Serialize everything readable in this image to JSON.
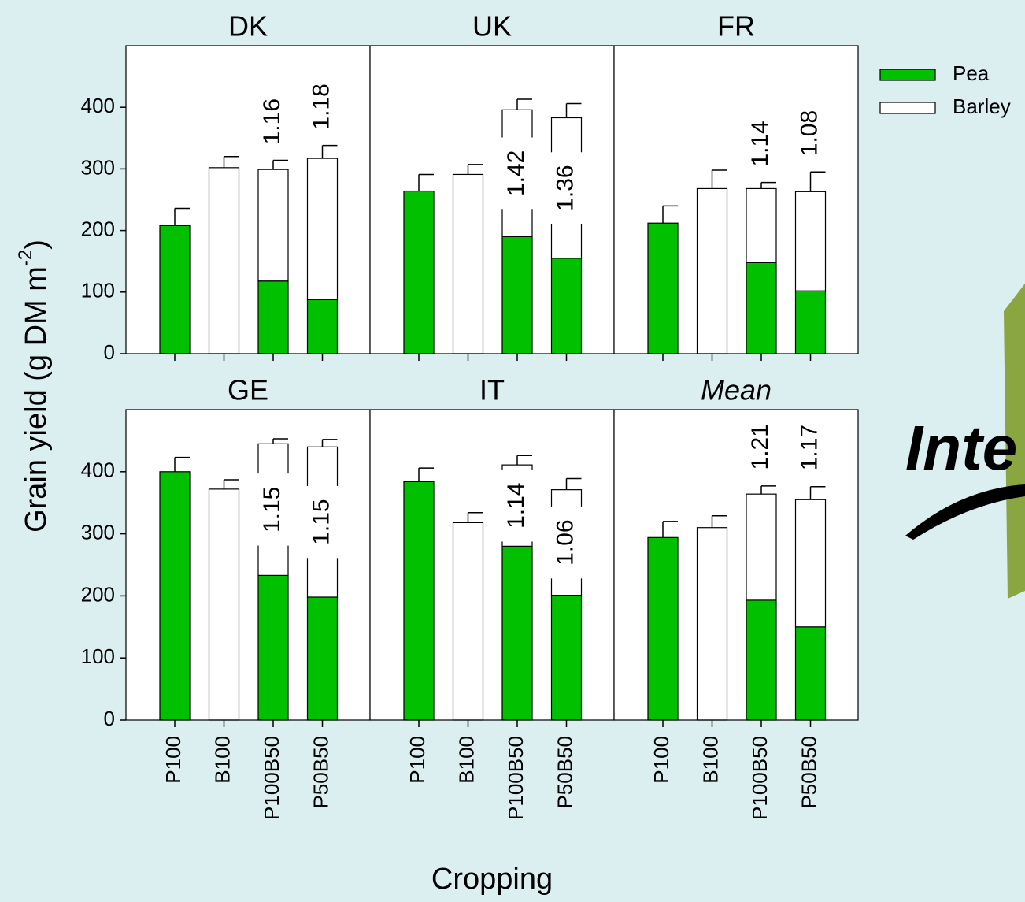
{
  "axis_labels": {
    "y": [
      "Grain yield (g DM m",
      "-2",
      ")"
    ],
    "x": "Cropping"
  },
  "logo_text": "Inte",
  "chart_data": [
    {
      "type": "bar",
      "title": "DK",
      "categories": [
        "P100",
        "B100",
        "P100B50",
        "P50B50"
      ],
      "ylim": [
        0,
        500
      ],
      "yticks": [
        0,
        100,
        200,
        300,
        400
      ],
      "series": [
        {
          "name": "Pea",
          "color": "#00c000",
          "values": [
            208,
            null,
            118,
            88
          ],
          "errors": [
            28,
            null,
            16,
            19
          ]
        },
        {
          "name": "Barley",
          "color": "#ffffff",
          "values": [
            null,
            302,
            181,
            229
          ],
          "errors": [
            null,
            18,
            15,
            21
          ]
        }
      ],
      "annotations": [
        "1.16",
        "1.18"
      ]
    },
    {
      "type": "bar",
      "title": "UK",
      "categories": [
        "P100",
        "B100",
        "P100B50",
        "P50B50"
      ],
      "ylim": [
        0,
        500
      ],
      "series": [
        {
          "name": "Pea",
          "color": "#00c000",
          "values": [
            264,
            null,
            190,
            155
          ],
          "errors": [
            27,
            null,
            5,
            18
          ]
        },
        {
          "name": "Barley",
          "color": "#ffffff",
          "values": [
            null,
            291,
            206,
            228
          ],
          "errors": [
            null,
            16,
            17,
            23
          ]
        }
      ],
      "annotations": [
        "1.42",
        "1.36"
      ]
    },
    {
      "type": "bar",
      "title": "FR",
      "categories": [
        "P100",
        "B100",
        "P100B50",
        "P50B50"
      ],
      "ylim": [
        0,
        500
      ],
      "series": [
        {
          "name": "Pea",
          "color": "#00c000",
          "values": [
            212,
            null,
            148,
            102
          ],
          "errors": [
            28,
            null,
            15,
            13
          ]
        },
        {
          "name": "Barley",
          "color": "#ffffff",
          "values": [
            null,
            268,
            120,
            161
          ],
          "errors": [
            null,
            30,
            10,
            32
          ]
        }
      ],
      "annotations": [
        "1.14",
        "1.08"
      ]
    },
    {
      "type": "bar",
      "title": "GE",
      "categories": [
        "P100",
        "B100",
        "P100B50",
        "P50B50"
      ],
      "ylim": [
        0,
        500
      ],
      "yticks": [
        0,
        100,
        200,
        300,
        400
      ],
      "series": [
        {
          "name": "Pea",
          "color": "#00c000",
          "values": [
            400,
            null,
            233,
            198
          ],
          "errors": [
            23,
            null,
            17,
            13
          ]
        },
        {
          "name": "Barley",
          "color": "#ffffff",
          "values": [
            null,
            372,
            212,
            242
          ],
          "errors": [
            null,
            15,
            8,
            12
          ]
        }
      ],
      "annotations": [
        "1.15",
        "1.15"
      ]
    },
    {
      "type": "bar",
      "title": "IT",
      "categories": [
        "P100",
        "B100",
        "P100B50",
        "P50B50"
      ],
      "ylim": [
        0,
        500
      ],
      "series": [
        {
          "name": "Pea",
          "color": "#00c000",
          "values": [
            384,
            null,
            280,
            201
          ],
          "errors": [
            22,
            null,
            16,
            16
          ]
        },
        {
          "name": "Barley",
          "color": "#ffffff",
          "values": [
            null,
            318,
            131,
            170
          ],
          "errors": [
            null,
            16,
            15,
            18
          ]
        }
      ],
      "annotations": [
        "1.14",
        "1.06"
      ]
    },
    {
      "type": "bar",
      "title": "Mean",
      "title_style": "italic",
      "categories": [
        "P100",
        "B100",
        "P100B50",
        "P50B50"
      ],
      "ylim": [
        0,
        500
      ],
      "series": [
        {
          "name": "Pea",
          "color": "#00c000",
          "values": [
            294,
            null,
            193,
            150
          ],
          "errors": [
            26,
            null,
            16,
            null
          ]
        },
        {
          "name": "Barley",
          "color": "#ffffff",
          "values": [
            null,
            310,
            171,
            205
          ],
          "errors": [
            null,
            19,
            13,
            21
          ]
        }
      ],
      "annotations": [
        "1.21",
        "1.17"
      ]
    }
  ]
}
